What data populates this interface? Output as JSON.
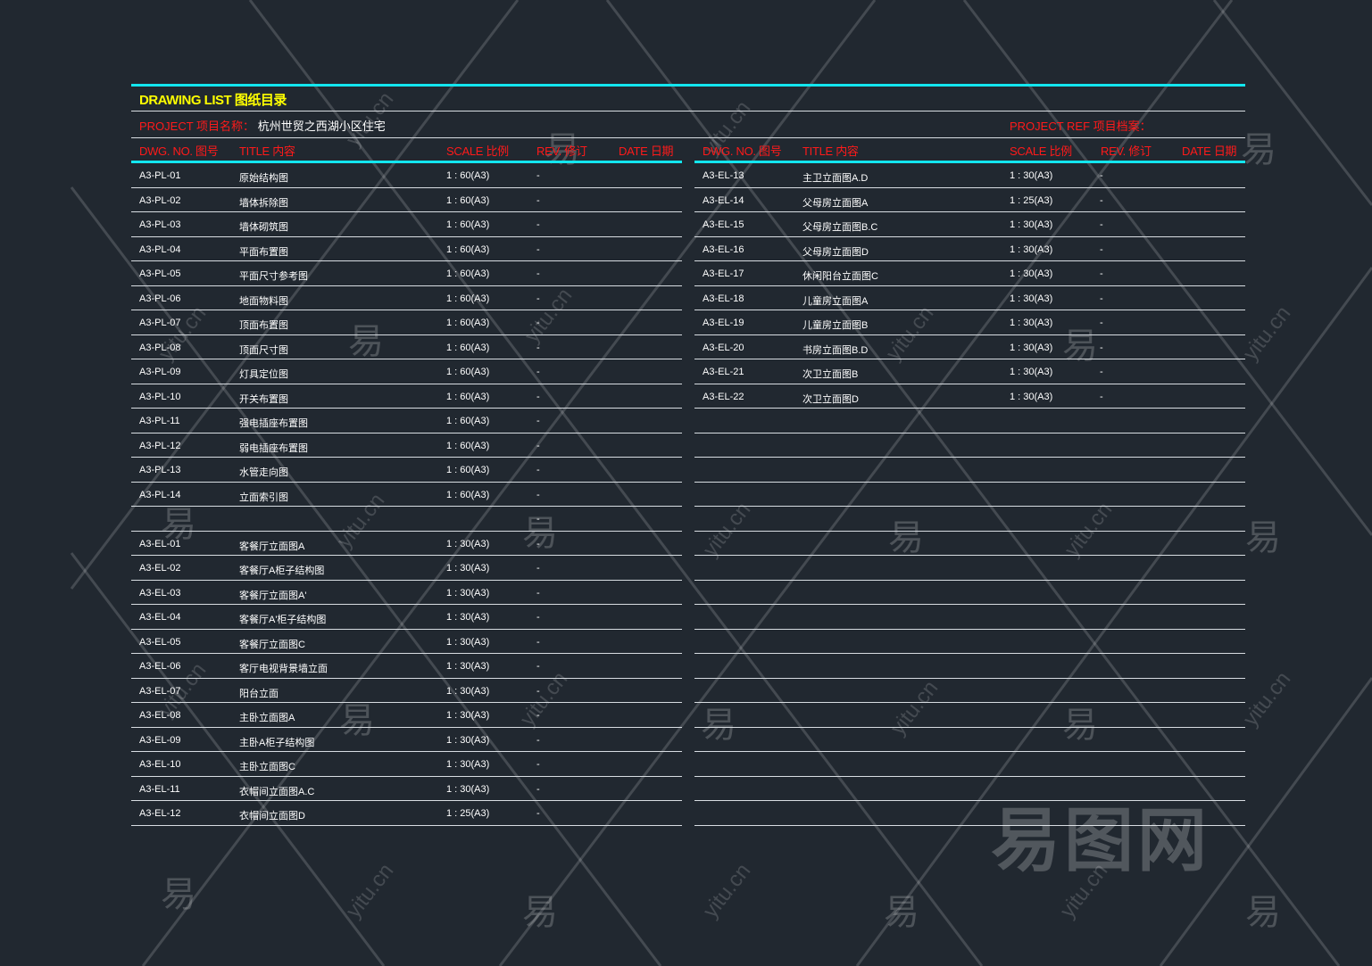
{
  "header": {
    "title": "DRAWING LIST 图纸目录",
    "project_label": "PROJECT 项目名称：",
    "project_name": "杭州世贸之西湖小区住宅",
    "project_ref_label": "PROJECT REF 项目档案："
  },
  "columns": {
    "dwg_no": "DWG. NO. 图号",
    "title": "TITLE 内容",
    "scale": "SCALE 比例",
    "rev": "REV. 修订",
    "date": "DATE 日期"
  },
  "left_rows": [
    {
      "no": "A3-PL-01",
      "title": "原始结构图",
      "scale": "1 : 60(A3)",
      "rev": "-"
    },
    {
      "no": "A3-PL-02",
      "title": "墙体拆除图",
      "scale": "1 : 60(A3)",
      "rev": "-"
    },
    {
      "no": "A3-PL-03",
      "title": "墙体砌筑图",
      "scale": "1 : 60(A3)",
      "rev": "-"
    },
    {
      "no": "A3-PL-04",
      "title": "平面布置图",
      "scale": "1 : 60(A3)",
      "rev": "-"
    },
    {
      "no": "A3-PL-05",
      "title": "平面尺寸参考图",
      "scale": "1 : 60(A3)",
      "rev": "-"
    },
    {
      "no": "A3-PL-06",
      "title": "地面物料图",
      "scale": "1 : 60(A3)",
      "rev": "-"
    },
    {
      "no": "A3-PL-07",
      "title": "顶面布置图",
      "scale": "1 : 60(A3)",
      "rev": "-"
    },
    {
      "no": "A3-PL-08",
      "title": "顶面尺寸图",
      "scale": "1 : 60(A3)",
      "rev": "-"
    },
    {
      "no": "A3-PL-09",
      "title": "灯具定位图",
      "scale": "1 : 60(A3)",
      "rev": "-"
    },
    {
      "no": "A3-PL-10",
      "title": "开关布置图",
      "scale": "1 : 60(A3)",
      "rev": "-"
    },
    {
      "no": "A3-PL-11",
      "title": "强电插座布置图",
      "scale": "1 : 60(A3)",
      "rev": "-"
    },
    {
      "no": "A3-PL-12",
      "title": "弱电插座布置图",
      "scale": "1 : 60(A3)",
      "rev": "-"
    },
    {
      "no": "A3-PL-13",
      "title": "水管走向图",
      "scale": "1 : 60(A3)",
      "rev": "-"
    },
    {
      "no": "A3-PL-14",
      "title": "立面索引图",
      "scale": "1 : 60(A3)",
      "rev": "-"
    },
    {
      "no": "",
      "title": "",
      "scale": "",
      "rev": "-"
    },
    {
      "no": "A3-EL-01",
      "title": "客餐厅立面图A",
      "scale": "1 : 30(A3)",
      "rev": "-"
    },
    {
      "no": "A3-EL-02",
      "title": "客餐厅A柜子结构图",
      "scale": "1 : 30(A3)",
      "rev": "-"
    },
    {
      "no": "A3-EL-03",
      "title": "客餐厅立面图A'",
      "scale": "1 : 30(A3)",
      "rev": "-"
    },
    {
      "no": "A3-EL-04",
      "title": "客餐厅A'柜子结构图",
      "scale": "1 : 30(A3)",
      "rev": "-"
    },
    {
      "no": "A3-EL-05",
      "title": "客餐厅立面图C",
      "scale": "1 : 30(A3)",
      "rev": "-"
    },
    {
      "no": "A3-EL-06",
      "title": "客厅电视背景墙立面",
      "scale": "1 : 30(A3)",
      "rev": "-"
    },
    {
      "no": "A3-EL-07",
      "title": "阳台立面",
      "scale": "1 : 30(A3)",
      "rev": "-"
    },
    {
      "no": "A3-EL-08",
      "title": "主卧立面图A",
      "scale": "1 : 30(A3)",
      "rev": "-"
    },
    {
      "no": "A3-EL-09",
      "title": "主卧A柜子结构图",
      "scale": "1 : 30(A3)",
      "rev": "-"
    },
    {
      "no": "A3-EL-10",
      "title": "主卧立面图C",
      "scale": "1 : 30(A3)",
      "rev": "-"
    },
    {
      "no": "A3-EL-11",
      "title": "衣帽间立面图A.C",
      "scale": "1 : 30(A3)",
      "rev": "-"
    },
    {
      "no": "A3-EL-12",
      "title": "衣帽间立面图D",
      "scale": "1 : 25(A3)",
      "rev": "-"
    }
  ],
  "right_rows": [
    {
      "no": "A3-EL-13",
      "title": "主卫立面图A.D",
      "scale": "1 : 30(A3)",
      "rev": "-"
    },
    {
      "no": "A3-EL-14",
      "title": "父母房立面图A",
      "scale": "1 : 25(A3)",
      "rev": "-"
    },
    {
      "no": "A3-EL-15",
      "title": "父母房立面图B.C",
      "scale": "1 : 30(A3)",
      "rev": "-"
    },
    {
      "no": "A3-EL-16",
      "title": "父母房立面图D",
      "scale": "1 : 30(A3)",
      "rev": "-"
    },
    {
      "no": "A3-EL-17",
      "title": "休闲阳台立面图C",
      "scale": "1 : 30(A3)",
      "rev": "-"
    },
    {
      "no": "A3-EL-18",
      "title": "儿童房立面图A",
      "scale": "1 : 30(A3)",
      "rev": "-"
    },
    {
      "no": "A3-EL-19",
      "title": "儿童房立面图B",
      "scale": "1 : 30(A3)",
      "rev": "-"
    },
    {
      "no": "A3-EL-20",
      "title": "书房立面图B.D",
      "scale": "1 : 30(A3)",
      "rev": "-"
    },
    {
      "no": "A3-EL-21",
      "title": "次卫立面图B",
      "scale": "1 : 30(A3)",
      "rev": "-"
    },
    {
      "no": "A3-EL-22",
      "title": "次卫立面图D",
      "scale": "1 : 30(A3)",
      "rev": "-"
    }
  ],
  "watermark": {
    "char": "易",
    "domain": "yitu.cn",
    "logo": "易图网"
  },
  "colors": {
    "background": "#212830",
    "accent_line": "#13e6ef",
    "header_red": "#ff1a1a",
    "title_yellow": "#ffff00"
  }
}
